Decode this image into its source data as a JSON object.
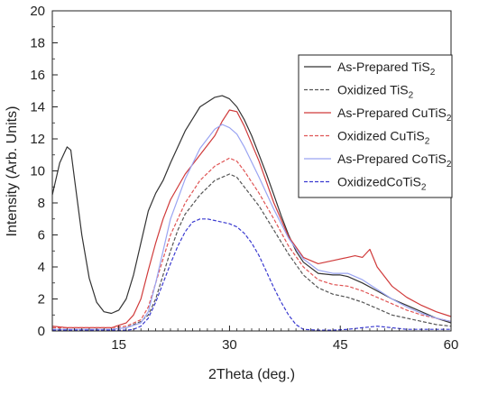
{
  "chart_data": {
    "type": "line",
    "xlabel": "2Theta (deg.)",
    "ylabel": "Intensity (Arb. Units)",
    "xlim": [
      6,
      60
    ],
    "ylim": [
      0,
      20
    ],
    "xticks": [
      15,
      30,
      45,
      60
    ],
    "yticks": [
      0,
      2,
      4,
      6,
      8,
      10,
      12,
      14,
      16,
      18,
      20
    ],
    "grid": false,
    "legend_position": "top-right",
    "series": [
      {
        "name": "As-Prepared TiS2",
        "legend_text": {
          "main": "As-Prepared TiS",
          "sub": "2"
        },
        "color": "#333333",
        "dash": "solid",
        "x": [
          6,
          7,
          8,
          8.5,
          9,
          10,
          11,
          12,
          13,
          14,
          15,
          16,
          17,
          18,
          19,
          20,
          21,
          22,
          24,
          26,
          28,
          29,
          30,
          31,
          32,
          33,
          34,
          35,
          36,
          37,
          38,
          39,
          40,
          42,
          44,
          45,
          46,
          48,
          50,
          52,
          54,
          56,
          58,
          60
        ],
        "y": [
          8.5,
          10.5,
          11.5,
          11.3,
          9.5,
          6.0,
          3.3,
          1.8,
          1.2,
          1.1,
          1.3,
          2.0,
          3.5,
          5.5,
          7.5,
          8.6,
          9.4,
          10.5,
          12.5,
          14.0,
          14.6,
          14.7,
          14.5,
          14.0,
          13.2,
          12.2,
          11.0,
          9.8,
          8.5,
          7.2,
          6.0,
          5.0,
          4.3,
          3.6,
          3.5,
          3.5,
          3.4,
          3.0,
          2.5,
          2.0,
          1.6,
          1.2,
          0.8,
          0.5
        ]
      },
      {
        "name": "Oxidized TiS2",
        "legend_text": {
          "main": "Oxidized TiS",
          "sub": "2"
        },
        "color": "#555555",
        "dash": "dashed",
        "x": [
          6,
          8,
          10,
          12,
          14,
          16,
          18,
          19,
          20,
          21,
          22,
          23,
          24,
          26,
          28,
          30,
          31,
          32,
          34,
          36,
          38,
          40,
          42,
          44,
          46,
          48,
          50,
          52,
          54,
          56,
          58,
          60
        ],
        "y": [
          0.1,
          0.1,
          0.1,
          0.1,
          0.1,
          0.2,
          0.6,
          1.0,
          2.0,
          3.5,
          5.0,
          6.3,
          7.3,
          8.5,
          9.4,
          9.8,
          9.6,
          9.0,
          7.8,
          6.3,
          4.8,
          3.5,
          2.7,
          2.3,
          2.1,
          1.8,
          1.4,
          1.0,
          0.8,
          0.6,
          0.4,
          0.3
        ]
      },
      {
        "name": "As-Prepared CuTiS2",
        "legend_text": {
          "main": "As-Prepared CuTiS",
          "sub": "2"
        },
        "color": "#d03a3a",
        "dash": "solid",
        "x": [
          6,
          8,
          10,
          12,
          14,
          16,
          17,
          18,
          19,
          20,
          21,
          22,
          24,
          26,
          28,
          29,
          30,
          31,
          32,
          34,
          36,
          38,
          40,
          42,
          44,
          46,
          47,
          48,
          49,
          50,
          52,
          54,
          56,
          58,
          60
        ],
        "y": [
          0.3,
          0.2,
          0.2,
          0.2,
          0.2,
          0.5,
          1.0,
          2.0,
          3.8,
          5.5,
          7.0,
          8.2,
          9.8,
          11.0,
          12.2,
          13.1,
          13.8,
          13.7,
          12.8,
          10.6,
          8.0,
          5.9,
          4.6,
          4.2,
          4.4,
          4.6,
          4.7,
          4.6,
          5.1,
          4.0,
          2.8,
          2.1,
          1.6,
          1.2,
          0.9
        ]
      },
      {
        "name": "Oxidized CuTiS2",
        "legend_text": {
          "main": "Oxidized CuTiS",
          "sub": "2"
        },
        "color": "#e05555",
        "dash": "dashed",
        "x": [
          6,
          8,
          10,
          12,
          14,
          16,
          18,
          19,
          20,
          21,
          22,
          24,
          26,
          28,
          30,
          31,
          32,
          34,
          36,
          38,
          40,
          42,
          44,
          46,
          48,
          50,
          52,
          54,
          56,
          58,
          60
        ],
        "y": [
          0.2,
          0.2,
          0.2,
          0.2,
          0.2,
          0.3,
          0.7,
          1.5,
          3.0,
          4.5,
          6.0,
          8.0,
          9.4,
          10.3,
          10.8,
          10.6,
          10.0,
          8.6,
          7.0,
          5.3,
          4.0,
          3.2,
          2.9,
          2.8,
          2.5,
          2.1,
          1.7,
          1.3,
          1.0,
          0.8,
          0.6
        ]
      },
      {
        "name": "As-Prepared CoTiS2",
        "legend_text": {
          "main": "As-Prepared CoTiS",
          "sub": "2"
        },
        "color": "#9aa4f2",
        "dash": "solid",
        "x": [
          6,
          8,
          10,
          12,
          14,
          16,
          18,
          19,
          20,
          21,
          22,
          24,
          26,
          28,
          29,
          30,
          31,
          32,
          34,
          36,
          38,
          40,
          42,
          44,
          46,
          48,
          50,
          52,
          54,
          56,
          58,
          60
        ],
        "y": [
          0.1,
          0.1,
          0.1,
          0.1,
          0.1,
          0.2,
          0.5,
          1.2,
          3.0,
          5.0,
          7.0,
          9.5,
          11.4,
          12.6,
          12.9,
          12.7,
          12.3,
          11.5,
          9.6,
          7.6,
          5.8,
          4.5,
          3.8,
          3.6,
          3.6,
          3.2,
          2.6,
          2.0,
          1.5,
          1.1,
          0.8,
          0.6
        ]
      },
      {
        "name": "OxidizedCoTiS2",
        "legend_text": {
          "main": "OxidizedCoTiS",
          "sub": "2"
        },
        "color": "#3a3ad0",
        "dash": "dashed",
        "x": [
          6,
          8,
          10,
          12,
          14,
          16,
          17,
          18,
          19,
          20,
          21,
          22,
          23,
          24,
          25,
          26,
          27,
          28,
          29,
          30,
          31,
          32,
          33,
          34,
          35,
          36,
          37,
          38,
          39,
          40,
          42,
          44,
          46,
          48,
          50,
          52,
          54,
          56,
          58,
          60
        ],
        "y": [
          0.05,
          0.05,
          0.05,
          0.05,
          0.05,
          0.05,
          0.1,
          0.3,
          0.8,
          1.8,
          3.0,
          4.2,
          5.3,
          6.2,
          6.8,
          7.0,
          7.0,
          6.9,
          6.8,
          6.7,
          6.5,
          6.1,
          5.5,
          4.7,
          3.7,
          2.7,
          1.8,
          1.0,
          0.4,
          0.1,
          0.05,
          0.05,
          0.1,
          0.2,
          0.3,
          0.2,
          0.1,
          0.1,
          0.1,
          0.1
        ]
      }
    ]
  }
}
